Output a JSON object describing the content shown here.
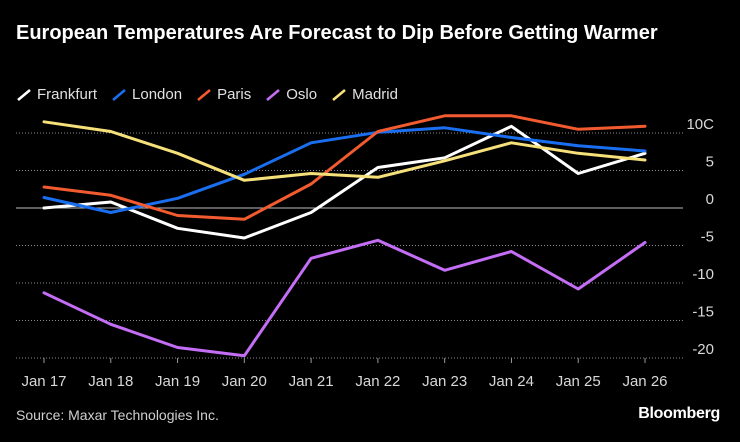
{
  "chart_data": {
    "type": "line",
    "title": "European Temperatures Are Forecast to Dip Before Getting Warmer",
    "categories": [
      "Jan 17",
      "Jan 18",
      "Jan 19",
      "Jan 20",
      "Jan 21",
      "Jan 22",
      "Jan 23",
      "Jan 24",
      "Jan 25",
      "Jan 26"
    ],
    "series": [
      {
        "name": "Frankfurt",
        "color": "#ffffff",
        "values": [
          0,
          0.8,
          -2.7,
          -4,
          -0.6,
          5.4,
          6.7,
          10.9,
          4.6,
          7.3
        ]
      },
      {
        "name": "London",
        "color": "#1a6ff0",
        "values": [
          1.4,
          -0.6,
          1.3,
          4.5,
          8.7,
          10.1,
          10.7,
          9.4,
          8.3,
          7.6
        ]
      },
      {
        "name": "Paris",
        "color": "#f25b30",
        "values": [
          2.8,
          1.7,
          -1,
          -1.5,
          3.2,
          10.2,
          12.3,
          12.3,
          10.5,
          10.9
        ]
      },
      {
        "name": "Oslo",
        "color": "#c46df5",
        "values": [
          -11.3,
          -15.5,
          -18.6,
          -19.7,
          -6.7,
          -4.3,
          -8.3,
          -5.8,
          -10.8,
          -4.6
        ]
      },
      {
        "name": "Madrid",
        "color": "#f5e07a",
        "values": [
          11.5,
          10.2,
          7.3,
          3.7,
          4.6,
          4.1,
          6.3,
          8.7,
          7.3,
          6.4
        ]
      }
    ],
    "ylim": [
      -20,
      12
    ],
    "yticks": [
      10,
      5,
      0,
      -5,
      -10,
      -15,
      -20
    ],
    "ytick_labels": [
      "10C",
      "5",
      "0",
      "-5",
      "-10",
      "-15",
      "-20"
    ],
    "zero_line": true,
    "xlabel": "",
    "ylabel": ""
  },
  "footer": {
    "source": "Source: Maxar Technologies Inc.",
    "brand": "Bloomberg"
  }
}
